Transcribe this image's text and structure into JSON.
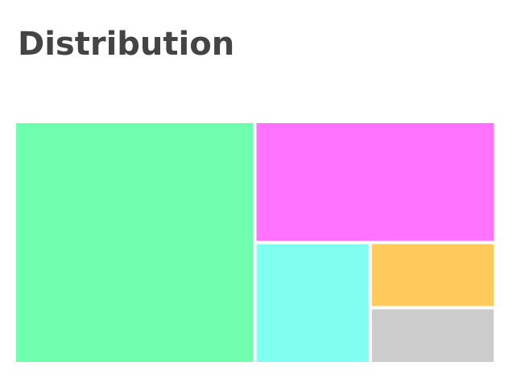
{
  "chart_data": {
    "type": "treemap",
    "title": "Distribution",
    "values": [
      50,
      25,
      12,
      7,
      6
    ],
    "colors": [
      "#70ffae",
      "#ff73ff",
      "#80fff0",
      "#ffc95c",
      "#cccccc"
    ]
  }
}
